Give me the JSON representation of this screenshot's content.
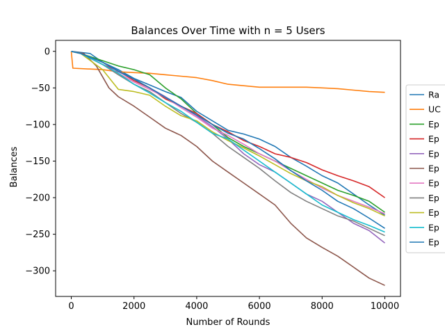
{
  "chart_data": {
    "type": "line",
    "title": "Balances Over Time with n = 5 Users",
    "xlabel": "Number of Rounds",
    "ylabel": "Balances",
    "xlim": [
      -500,
      10500
    ],
    "ylim": [
      -335,
      15
    ],
    "xticks": [
      0,
      2000,
      4000,
      6000,
      8000,
      10000
    ],
    "yticks": [
      0,
      -50,
      -100,
      -150,
      -200,
      -250,
      -300
    ],
    "grid": false,
    "legend_position": "right (clipped)",
    "series": [
      {
        "name": "Ra",
        "color": "#1f77b4",
        "points": [
          [
            0,
            0
          ],
          [
            600,
            -3
          ],
          [
            1000,
            -15
          ],
          [
            1500,
            -25
          ],
          [
            2000,
            -37
          ],
          [
            2500,
            -46
          ],
          [
            3000,
            -55
          ],
          [
            3500,
            -63
          ],
          [
            4000,
            -82
          ],
          [
            4500,
            -95
          ],
          [
            5000,
            -108
          ],
          [
            5500,
            -113
          ],
          [
            6000,
            -120
          ],
          [
            6500,
            -130
          ],
          [
            7000,
            -145
          ],
          [
            7500,
            -157
          ],
          [
            8000,
            -170
          ],
          [
            8500,
            -180
          ],
          [
            9000,
            -195
          ],
          [
            9500,
            -210
          ],
          [
            10000,
            -224
          ]
        ]
      },
      {
        "name": "UC",
        "color": "#ff7f0e",
        "points": [
          [
            0,
            0
          ],
          [
            50,
            -23
          ],
          [
            1000,
            -25
          ],
          [
            1500,
            -28
          ],
          [
            2000,
            -29
          ],
          [
            2500,
            -30
          ],
          [
            3000,
            -32
          ],
          [
            3500,
            -34
          ],
          [
            4000,
            -36
          ],
          [
            4500,
            -40
          ],
          [
            5000,
            -45
          ],
          [
            5500,
            -47
          ],
          [
            6000,
            -49
          ],
          [
            6500,
            -49
          ],
          [
            7000,
            -49
          ],
          [
            7500,
            -49
          ],
          [
            8000,
            -50
          ],
          [
            8500,
            -51
          ],
          [
            9000,
            -53
          ],
          [
            9500,
            -55
          ],
          [
            10000,
            -56
          ]
        ]
      },
      {
        "name": "Ep",
        "color": "#2ca02c",
        "points": [
          [
            0,
            0
          ],
          [
            300,
            -3
          ],
          [
            800,
            -10
          ],
          [
            1500,
            -20
          ],
          [
            2000,
            -25
          ],
          [
            2500,
            -32
          ],
          [
            3000,
            -50
          ],
          [
            3500,
            -65
          ],
          [
            4000,
            -85
          ],
          [
            4500,
            -100
          ],
          [
            5000,
            -118
          ],
          [
            5500,
            -130
          ],
          [
            6000,
            -140
          ],
          [
            6500,
            -150
          ],
          [
            7000,
            -160
          ],
          [
            7500,
            -170
          ],
          [
            8000,
            -180
          ],
          [
            8500,
            -190
          ],
          [
            9000,
            -197
          ],
          [
            9500,
            -205
          ],
          [
            10000,
            -220
          ]
        ]
      },
      {
        "name": "Ep",
        "color": "#d62728",
        "points": [
          [
            0,
            0
          ],
          [
            300,
            -3
          ],
          [
            1000,
            -18
          ],
          [
            1500,
            -27
          ],
          [
            2000,
            -40
          ],
          [
            2500,
            -50
          ],
          [
            3000,
            -65
          ],
          [
            3500,
            -75
          ],
          [
            4000,
            -85
          ],
          [
            4500,
            -100
          ],
          [
            5000,
            -110
          ],
          [
            5500,
            -122
          ],
          [
            6000,
            -130
          ],
          [
            6500,
            -140
          ],
          [
            7000,
            -145
          ],
          [
            7500,
            -152
          ],
          [
            8000,
            -162
          ],
          [
            8500,
            -170
          ],
          [
            9000,
            -177
          ],
          [
            9500,
            -185
          ],
          [
            10000,
            -200
          ]
        ]
      },
      {
        "name": "Ep",
        "color": "#9467bd",
        "points": [
          [
            0,
            0
          ],
          [
            300,
            -3
          ],
          [
            1000,
            -15
          ],
          [
            1500,
            -28
          ],
          [
            2000,
            -38
          ],
          [
            2500,
            -50
          ],
          [
            3000,
            -62
          ],
          [
            3500,
            -75
          ],
          [
            4000,
            -88
          ],
          [
            4500,
            -103
          ],
          [
            5000,
            -120
          ],
          [
            5500,
            -140
          ],
          [
            6000,
            -155
          ],
          [
            6500,
            -165
          ],
          [
            7000,
            -180
          ],
          [
            7500,
            -195
          ],
          [
            8000,
            -205
          ],
          [
            8500,
            -220
          ],
          [
            9000,
            -235
          ],
          [
            9500,
            -245
          ],
          [
            10000,
            -262
          ]
        ]
      },
      {
        "name": "Ep",
        "color": "#8c564b",
        "points": [
          [
            0,
            0
          ],
          [
            400,
            -3
          ],
          [
            800,
            -20
          ],
          [
            1200,
            -50
          ],
          [
            1500,
            -62
          ],
          [
            2000,
            -75
          ],
          [
            2500,
            -90
          ],
          [
            3000,
            -105
          ],
          [
            3500,
            -115
          ],
          [
            4000,
            -130
          ],
          [
            4500,
            -150
          ],
          [
            5000,
            -165
          ],
          [
            5500,
            -180
          ],
          [
            6000,
            -195
          ],
          [
            6500,
            -210
          ],
          [
            7000,
            -235
          ],
          [
            7500,
            -255
          ],
          [
            8000,
            -268
          ],
          [
            8500,
            -280
          ],
          [
            9000,
            -295
          ],
          [
            9500,
            -310
          ],
          [
            10000,
            -320
          ]
        ]
      },
      {
        "name": "Ep",
        "color": "#e377c2",
        "points": [
          [
            0,
            0
          ],
          [
            300,
            -3
          ],
          [
            1000,
            -18
          ],
          [
            1500,
            -30
          ],
          [
            2000,
            -42
          ],
          [
            2500,
            -52
          ],
          [
            3000,
            -63
          ],
          [
            3500,
            -77
          ],
          [
            4000,
            -90
          ],
          [
            4500,
            -105
          ],
          [
            5000,
            -115
          ],
          [
            5500,
            -127
          ],
          [
            6000,
            -140
          ],
          [
            6500,
            -150
          ],
          [
            7000,
            -163
          ],
          [
            7500,
            -175
          ],
          [
            8000,
            -187
          ],
          [
            8500,
            -197
          ],
          [
            9000,
            -205
          ],
          [
            9500,
            -213
          ],
          [
            10000,
            -222
          ]
        ]
      },
      {
        "name": "Ep",
        "color": "#7f7f7f",
        "points": [
          [
            0,
            0
          ],
          [
            300,
            -3
          ],
          [
            1000,
            -18
          ],
          [
            1500,
            -32
          ],
          [
            2000,
            -45
          ],
          [
            2500,
            -55
          ],
          [
            3000,
            -70
          ],
          [
            3500,
            -85
          ],
          [
            4000,
            -97
          ],
          [
            4500,
            -112
          ],
          [
            5000,
            -130
          ],
          [
            5500,
            -145
          ],
          [
            6000,
            -160
          ],
          [
            6500,
            -177
          ],
          [
            7000,
            -193
          ],
          [
            7500,
            -205
          ],
          [
            8000,
            -215
          ],
          [
            8500,
            -225
          ],
          [
            9000,
            -232
          ],
          [
            9500,
            -242
          ],
          [
            10000,
            -252
          ]
        ]
      },
      {
        "name": "Ep",
        "color": "#bcbd22",
        "points": [
          [
            0,
            0
          ],
          [
            300,
            -3
          ],
          [
            1000,
            -25
          ],
          [
            1500,
            -52
          ],
          [
            2000,
            -55
          ],
          [
            2500,
            -60
          ],
          [
            3000,
            -75
          ],
          [
            3500,
            -88
          ],
          [
            4000,
            -95
          ],
          [
            4500,
            -110
          ],
          [
            5000,
            -122
          ],
          [
            5500,
            -132
          ],
          [
            6000,
            -143
          ],
          [
            6500,
            -155
          ],
          [
            7000,
            -167
          ],
          [
            7500,
            -177
          ],
          [
            8000,
            -185
          ],
          [
            8500,
            -197
          ],
          [
            9000,
            -207
          ],
          [
            9500,
            -215
          ],
          [
            10000,
            -225
          ]
        ]
      },
      {
        "name": "Ep",
        "color": "#17becf",
        "points": [
          [
            0,
            0
          ],
          [
            300,
            -3
          ],
          [
            1000,
            -18
          ],
          [
            1500,
            -30
          ],
          [
            2000,
            -45
          ],
          [
            2500,
            -57
          ],
          [
            3000,
            -70
          ],
          [
            3500,
            -82
          ],
          [
            4000,
            -97
          ],
          [
            4500,
            -112
          ],
          [
            5000,
            -120
          ],
          [
            5500,
            -135
          ],
          [
            6000,
            -150
          ],
          [
            6500,
            -165
          ],
          [
            7000,
            -180
          ],
          [
            7500,
            -195
          ],
          [
            8000,
            -210
          ],
          [
            8500,
            -220
          ],
          [
            9000,
            -230
          ],
          [
            9500,
            -238
          ],
          [
            10000,
            -247
          ]
        ]
      },
      {
        "name": "Ep",
        "color": "#1f77b4",
        "points": [
          [
            0,
            0
          ],
          [
            300,
            -3
          ],
          [
            1000,
            -15
          ],
          [
            1500,
            -27
          ],
          [
            2000,
            -38
          ],
          [
            2500,
            -50
          ],
          [
            3000,
            -63
          ],
          [
            3500,
            -75
          ],
          [
            4000,
            -87
          ],
          [
            4500,
            -100
          ],
          [
            5000,
            -112
          ],
          [
            5500,
            -120
          ],
          [
            6000,
            -133
          ],
          [
            6500,
            -147
          ],
          [
            7000,
            -163
          ],
          [
            7500,
            -177
          ],
          [
            8000,
            -190
          ],
          [
            8500,
            -205
          ],
          [
            9000,
            -215
          ],
          [
            9500,
            -228
          ],
          [
            10000,
            -242
          ]
        ]
      }
    ]
  }
}
